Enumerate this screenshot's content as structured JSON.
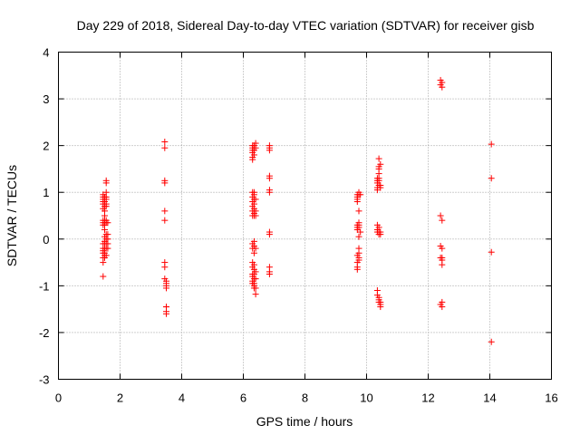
{
  "chart_data": {
    "type": "scatter",
    "title": "Day 229 of 2018, Sidereal Day-to-day VTEC variation (SDTVAR) for receiver gisb",
    "xlabel": "GPS time / hours",
    "ylabel": "SDTVAR / TECUs",
    "xlim": [
      0,
      16
    ],
    "ylim": [
      -3,
      4
    ],
    "xticks": [
      0,
      2,
      4,
      6,
      8,
      10,
      12,
      14,
      16
    ],
    "yticks": [
      -3,
      -2,
      -1,
      0,
      1,
      2,
      3,
      4
    ],
    "grid": true,
    "marker": "+",
    "color": "#ff0000",
    "series": [
      {
        "name": "SDTVAR",
        "x": [
          1.45,
          1.45,
          1.45,
          1.45,
          1.45,
          1.45,
          1.45,
          1.45,
          1.45,
          1.45,
          1.45,
          1.45,
          1.45,
          1.45,
          1.45,
          1.45,
          1.5,
          1.5,
          1.5,
          1.5,
          1.5,
          1.5,
          1.5,
          1.5,
          1.5,
          1.5,
          1.5,
          1.5,
          1.5,
          1.5,
          1.5,
          1.5,
          1.55,
          1.55,
          1.55,
          1.55,
          1.55,
          1.55,
          1.55,
          1.55,
          1.55,
          1.55,
          1.55,
          1.55,
          1.55,
          1.55,
          1.6,
          1.6,
          1.6,
          1.6,
          1.6,
          3.45,
          3.45,
          3.45,
          3.45,
          3.45,
          3.45,
          3.45,
          3.45,
          3.45,
          3.5,
          3.5,
          3.5,
          3.5,
          3.5,
          3.5,
          3.5,
          3.5,
          6.3,
          6.3,
          6.3,
          6.3,
          6.3,
          6.3,
          6.3,
          6.3,
          6.3,
          6.3,
          6.3,
          6.3,
          6.3,
          6.3,
          6.3,
          6.3,
          6.3,
          6.3,
          6.3,
          6.3,
          6.35,
          6.35,
          6.35,
          6.35,
          6.35,
          6.35,
          6.35,
          6.35,
          6.35,
          6.35,
          6.35,
          6.35,
          6.35,
          6.35,
          6.35,
          6.35,
          6.35,
          6.35,
          6.35,
          6.35,
          6.4,
          6.4,
          6.4,
          6.4,
          6.4,
          6.4,
          6.4,
          6.4,
          6.4,
          6.4,
          6.85,
          6.85,
          6.85,
          6.85,
          6.85,
          6.85,
          6.85,
          6.85,
          6.85,
          6.85,
          6.85,
          6.85,
          9.7,
          9.7,
          9.7,
          9.7,
          9.7,
          9.7,
          9.7,
          9.7,
          9.7,
          9.7,
          9.7,
          9.75,
          9.75,
          9.75,
          9.75,
          9.75,
          9.75,
          9.75,
          9.75,
          9.75,
          9.75,
          9.75,
          9.8,
          9.8,
          10.35,
          10.35,
          10.35,
          10.35,
          10.35,
          10.35,
          10.35,
          10.35,
          10.35,
          10.35,
          10.4,
          10.4,
          10.4,
          10.4,
          10.4,
          10.4,
          10.4,
          10.4,
          10.4,
          10.4,
          10.4,
          10.4,
          10.4,
          10.45,
          10.45,
          10.45,
          10.45,
          10.45,
          10.45,
          10.45,
          10.45,
          12.4,
          12.4,
          12.4,
          12.4,
          12.4,
          12.4,
          12.45,
          12.45,
          12.45,
          12.45,
          12.45,
          12.45,
          12.45,
          12.45,
          12.45,
          14.05,
          14.05,
          14.05,
          14.05
        ],
        "y": [
          0.95,
          0.9,
          0.85,
          0.8,
          0.75,
          0.65,
          0.4,
          0.35,
          0.3,
          -0.1,
          -0.2,
          -0.25,
          -0.3,
          -0.4,
          -0.5,
          -0.8,
          0.9,
          0.8,
          0.7,
          0.6,
          0.5,
          0.4,
          0.35,
          0.3,
          0.2,
          0.05,
          -0.05,
          -0.1,
          -0.2,
          -0.3,
          -0.35,
          -0.4,
          1.25,
          1.2,
          1.0,
          0.9,
          0.85,
          0.75,
          0.7,
          0.4,
          0.35,
          0.1,
          0.0,
          -0.1,
          -0.2,
          -0.35,
          0.35,
          0.1,
          0.0,
          -0.1,
          -0.2,
          2.08,
          1.95,
          1.25,
          1.2,
          0.6,
          0.4,
          -0.5,
          -0.6,
          -0.85,
          -0.9,
          -0.95,
          -1.0,
          -1.05,
          -1.45,
          -1.55,
          -1.6,
          -1.45,
          2.0,
          1.95,
          1.9,
          1.85,
          1.75,
          1.7,
          1.0,
          0.9,
          0.8,
          0.7,
          0.6,
          0.5,
          -0.1,
          -0.2,
          -0.5,
          -0.6,
          -0.75,
          -0.8,
          -0.9,
          -0.95,
          2.0,
          1.9,
          1.8,
          1.0,
          0.95,
          0.85,
          0.75,
          0.65,
          0.55,
          0.5,
          -0.05,
          -0.15,
          -0.3,
          -0.55,
          -0.65,
          -0.75,
          -0.85,
          -0.95,
          -1.0,
          -1.05,
          2.05,
          1.95,
          0.85,
          0.6,
          0.5,
          -0.2,
          -0.7,
          -0.85,
          -1.05,
          -1.18,
          2.0,
          1.95,
          1.9,
          1.35,
          1.3,
          1.05,
          1.0,
          0.15,
          0.1,
          -0.6,
          -0.7,
          -0.75,
          0.95,
          0.9,
          0.85,
          0.8,
          0.3,
          0.25,
          0.2,
          -0.35,
          -0.5,
          -0.6,
          -0.65,
          1.0,
          0.95,
          0.6,
          0.35,
          0.3,
          0.25,
          0.05,
          -0.2,
          -0.3,
          -0.4,
          -0.45,
          0.95,
          0.15,
          1.3,
          1.25,
          1.2,
          1.1,
          1.05,
          0.3,
          0.2,
          0.15,
          -1.1,
          -1.2,
          1.72,
          1.55,
          1.5,
          1.4,
          1.3,
          1.25,
          1.15,
          0.25,
          0.15,
          0.1,
          -1.25,
          -1.3,
          -1.35,
          1.6,
          1.15,
          1.1,
          0.15,
          0.1,
          -1.35,
          -1.4,
          -1.45,
          3.4,
          3.3,
          0.5,
          -0.15,
          -0.4,
          -1.4,
          3.35,
          3.25,
          0.4,
          -0.2,
          -0.4,
          -0.45,
          -0.55,
          -1.35,
          -1.45,
          2.03,
          1.3,
          -0.28,
          -2.2
        ]
      }
    ]
  }
}
